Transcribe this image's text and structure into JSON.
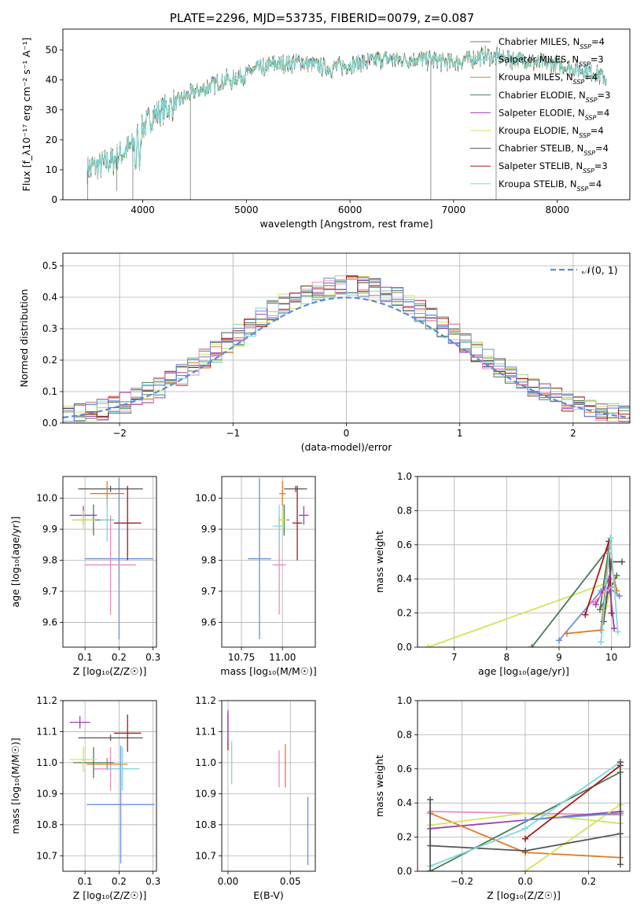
{
  "colors": {
    "Chabrier MILES": "#5b8a5b",
    "Salpeter MILES": "#a1ce9b",
    "Kroupa MILES": "#e07b2a",
    "Chabrier ELODIE": "#4a7a55",
    "Salpeter ELODIE": "#9d3fb5",
    "Kroupa ELODIE": "#d4e35a",
    "Chabrier STELIB": "#555555",
    "Salpeter STELIB": "#a81818",
    "Kroupa STELIB": "#7fd8dc",
    "extra_pink": "#e88cbf",
    "extra_blue": "#6a8fdc",
    "gaussian": "#5b8ad6"
  },
  "chart_data": [
    {
      "id": "spectrum",
      "type": "line",
      "title": "PLATE=2296, MJD=53735, FIBERID=0079, z=0.087",
      "xlabel": "wavelength [Angstrom, rest frame]",
      "ylabel": "Flux [f_λ10⁻¹⁷ erg cm⁻² s⁻¹ A⁻¹]",
      "xlim": [
        3230,
        8700
      ],
      "ylim": [
        0,
        57
      ],
      "xticks": [
        "4000",
        "5000",
        "6000",
        "7000",
        "8000"
      ],
      "yticks": [
        "0",
        "10",
        "20",
        "30",
        "40",
        "50"
      ],
      "legend_position": "top-right",
      "legend": [
        {
          "name": "Chabrier MILES",
          "sup": "N_SSP=4"
        },
        {
          "name": "Salpeter MILES",
          "sup": "N_SSP=3"
        },
        {
          "name": "Kroupa MILES",
          "sup": "N_SSP=4"
        },
        {
          "name": "Chabrier ELODIE",
          "sup": "N_SSP=3"
        },
        {
          "name": "Salpeter ELODIE",
          "sup": "N_SSP=4"
        },
        {
          "name": "Kroupa ELODIE",
          "sup": "N_SSP=4"
        },
        {
          "name": "Chabrier STELIB",
          "sup": "N_SSP=4"
        },
        {
          "name": "Salpeter STELIB",
          "sup": "N_SSP=3"
        },
        {
          "name": "Kroupa STELIB",
          "sup": "N_SSP=4"
        }
      ],
      "continuum_knots": [
        [
          3460,
          10
        ],
        [
          3700,
          13
        ],
        [
          3900,
          18
        ],
        [
          4000,
          24
        ],
        [
          4100,
          28
        ],
        [
          4300,
          32
        ],
        [
          4500,
          36
        ],
        [
          4800,
          40
        ],
        [
          5000,
          42
        ],
        [
          5200,
          45
        ],
        [
          5500,
          46
        ],
        [
          5800,
          44
        ],
        [
          6000,
          45
        ],
        [
          6300,
          47
        ],
        [
          6600,
          47
        ],
        [
          7000,
          46
        ],
        [
          7300,
          48
        ],
        [
          7600,
          47
        ],
        [
          8000,
          45
        ],
        [
          8300,
          43
        ],
        [
          8500,
          40
        ]
      ],
      "drop_lines": [
        [
          3470,
          0
        ],
        [
          3750,
          3
        ],
        [
          3905,
          0
        ],
        [
          4460,
          0
        ],
        [
          6780,
          0
        ],
        [
          7410,
          0
        ]
      ]
    },
    {
      "id": "residual-hist",
      "type": "histogram",
      "xlabel": "(data-model)/error",
      "ylabel": "Normed distribution",
      "xlim": [
        -2.5,
        2.5
      ],
      "ylim": [
        0,
        0.54
      ],
      "xticks": [
        "−2",
        "−1",
        "0",
        "1",
        "2"
      ],
      "yticks": [
        "0.0",
        "0.1",
        "0.2",
        "0.3",
        "0.4",
        "0.5"
      ],
      "legend_position": "top-right",
      "legend_label": "𝒩(0, 1)",
      "bin_edges_from": -2.5,
      "bin_width": 0.1,
      "gaussian": {
        "mu": 0,
        "sigma": 1
      }
    },
    {
      "id": "age-Z",
      "type": "errorbar",
      "xlabel": "Z [log₁₀(Z/Z☉)]",
      "ylabel": "age [log₁₀(age/yr)]",
      "xlim": [
        0.035,
        0.31
      ],
      "ylim": [
        9.52,
        10.07
      ],
      "xticks": [
        "0.1",
        "0.2",
        "0.3"
      ],
      "yticks": [
        "9.6",
        "9.7",
        "9.8",
        "9.9",
        "10.0"
      ],
      "points": [
        {
          "c": "extra_blue",
          "x": 0.2,
          "y": 9.805,
          "xe": 0.1,
          "ye": 0.26
        },
        {
          "c": "extra_pink",
          "x": 0.175,
          "y": 9.785,
          "xe": 0.075,
          "ye": 0.16
        },
        {
          "c": "Chabrier STELIB",
          "x": 0.175,
          "y": 10.03,
          "xe": 0.095,
          "ye": 0.01
        },
        {
          "c": "Kroupa MILES",
          "x": 0.165,
          "y": 10.015,
          "xe": 0.05,
          "ye": 0.04
        },
        {
          "c": "Salpeter ELODIE",
          "x": 0.095,
          "y": 9.945,
          "xe": 0.04,
          "ye": 0.03
        },
        {
          "c": "Chabrier ELODIE",
          "x": 0.125,
          "y": 9.93,
          "xe": 0.06,
          "ye": 0.05
        },
        {
          "c": "Salpeter STELIB",
          "x": 0.225,
          "y": 9.92,
          "xe": 0.04,
          "ye": 0.12
        },
        {
          "c": "Kroupa ELODIE",
          "x": 0.095,
          "y": 9.93,
          "xe": 0.035,
          "ye": 0.03
        },
        {
          "c": "Kroupa STELIB",
          "x": 0.165,
          "y": 9.93,
          "xe": 0.02,
          "ye": 0.07
        }
      ]
    },
    {
      "id": "age-mass",
      "type": "errorbar",
      "xlabel": "mass [log₁₀(M/M☉)]",
      "ylabel": "",
      "xlim": [
        10.63,
        11.2
      ],
      "ylim": [
        9.52,
        10.07
      ],
      "xticks": [
        "10.75",
        "11.00"
      ],
      "yticks": [
        "9.6",
        "9.7",
        "9.8",
        "9.9",
        "10.0"
      ],
      "points": [
        {
          "c": "extra_blue",
          "x": 10.86,
          "y": 9.805,
          "xe": 0.07,
          "ye": 0.26
        },
        {
          "c": "extra_pink",
          "x": 10.98,
          "y": 9.785,
          "xe": 0.04,
          "ye": 0.16
        },
        {
          "c": "Chabrier STELIB",
          "x": 11.08,
          "y": 10.03,
          "xe": 0.07,
          "ye": 0.01
        },
        {
          "c": "Kroupa MILES",
          "x": 11.0,
          "y": 10.015,
          "xe": 0.02,
          "ye": 0.04
        },
        {
          "c": "Salpeter ELODIE",
          "x": 11.13,
          "y": 9.945,
          "xe": 0.03,
          "ye": 0.03
        },
        {
          "c": "Chabrier ELODIE",
          "x": 11.01,
          "y": 9.93,
          "xe": 0.03,
          "ye": 0.05
        },
        {
          "c": "Salpeter STELIB",
          "x": 11.09,
          "y": 9.92,
          "xe": 0.03,
          "ye": 0.12
        },
        {
          "c": "Kroupa ELODIE",
          "x": 11.0,
          "y": 9.93,
          "xe": 0.03,
          "ye": 0.03
        },
        {
          "c": "Kroupa STELIB",
          "x": 10.98,
          "y": 9.91,
          "xe": 0.04,
          "ye": 0.07
        }
      ]
    },
    {
      "id": "massweight-age",
      "type": "line",
      "xlabel": "age [log₁₀(age/yr)]",
      "ylabel": "mass weight",
      "xlim": [
        6.3,
        10.35
      ],
      "ylim": [
        0,
        1.0
      ],
      "xticks": [
        "7",
        "8",
        "9",
        "10"
      ],
      "yticks": [
        "0.0",
        "0.2",
        "0.4",
        "0.6",
        "0.8",
        "1.0"
      ],
      "series": [
        {
          "c": "Kroupa ELODIE",
          "pts": [
            [
              6.5,
              0.0
            ],
            [
              9.95,
              0.38
            ],
            [
              9.9,
              0.24
            ],
            [
              10.0,
              0.35
            ]
          ]
        },
        {
          "c": "Chabrier ELODIE",
          "pts": [
            [
              8.48,
              0.0
            ],
            [
              9.95,
              0.58
            ],
            [
              9.78,
              0.22
            ],
            [
              10.1,
              0.42
            ]
          ]
        },
        {
          "c": "extra_blue",
          "pts": [
            [
              9.0,
              0.04
            ],
            [
              9.8,
              0.33
            ],
            [
              9.95,
              0.35
            ],
            [
              10.15,
              0.3
            ]
          ]
        },
        {
          "c": "Kroupa MILES",
          "pts": [
            [
              9.15,
              0.08
            ],
            [
              9.8,
              0.1
            ],
            [
              9.95,
              0.55
            ],
            [
              10.1,
              0.33
            ]
          ]
        },
        {
          "c": "Salpeter STELIB",
          "pts": [
            [
              9.5,
              0.19
            ],
            [
              9.95,
              0.62
            ],
            [
              10.0,
              0.2
            ]
          ]
        },
        {
          "c": "Chabrier STELIB",
          "pts": [
            [
              9.85,
              0.15
            ],
            [
              10.0,
              0.5
            ],
            [
              10.2,
              0.5
            ]
          ]
        },
        {
          "c": "Salpeter ELODIE",
          "pts": [
            [
              9.7,
              0.25
            ],
            [
              9.95,
              0.4
            ],
            [
              10.05,
              0.11
            ]
          ]
        },
        {
          "c": "extra_pink",
          "pts": [
            [
              9.65,
              0.26
            ],
            [
              9.9,
              0.33
            ],
            [
              10.0,
              0.35
            ]
          ]
        },
        {
          "c": "Kroupa STELIB",
          "pts": [
            [
              9.8,
              0.03
            ],
            [
              9.98,
              0.64
            ],
            [
              10.12,
              0.09
            ]
          ]
        }
      ]
    },
    {
      "id": "mass-Z",
      "type": "errorbar",
      "xlabel": "Z [log₁₀(Z/Z☉)]",
      "ylabel": "mass [log₁₀(M/M☉)]",
      "xlim": [
        0.035,
        0.31
      ],
      "ylim": [
        10.65,
        11.2
      ],
      "xticks": [
        "0.1",
        "0.2",
        "0.3"
      ],
      "yticks": [
        "10.7",
        "10.8",
        "10.9",
        "11.0",
        "11.1",
        "11.2"
      ],
      "points": [
        {
          "c": "extra_blue",
          "x": 0.205,
          "y": 10.865,
          "xe": 0.1,
          "ye": 0.19
        },
        {
          "c": "extra_pink",
          "x": 0.175,
          "y": 10.98,
          "xe": 0.05,
          "ye": 0.07
        },
        {
          "c": "Chabrier STELIB",
          "x": 0.175,
          "y": 11.08,
          "xe": 0.095,
          "ye": 0.01
        },
        {
          "c": "Kroupa MILES",
          "x": 0.165,
          "y": 10.995,
          "xe": 0.06,
          "ye": 0.02
        },
        {
          "c": "Salpeter ELODIE",
          "x": 0.085,
          "y": 11.13,
          "xe": 0.03,
          "ye": 0.02
        },
        {
          "c": "Chabrier ELODIE",
          "x": 0.125,
          "y": 11.0,
          "xe": 0.06,
          "ye": 0.05
        },
        {
          "c": "Salpeter STELIB",
          "x": 0.225,
          "y": 11.095,
          "xe": 0.04,
          "ye": 0.06
        },
        {
          "c": "Kroupa ELODIE",
          "x": 0.095,
          "y": 11.01,
          "xe": 0.04,
          "ye": 0.04
        },
        {
          "c": "Kroupa STELIB",
          "x": 0.21,
          "y": 10.98,
          "xe": 0.05,
          "ye": 0.07
        }
      ]
    },
    {
      "id": "mass-ebv",
      "type": "errorbar",
      "xlabel": "E(B-V)",
      "ylabel": "",
      "xlim": [
        -0.005,
        0.07
      ],
      "ylim": [
        10.65,
        11.2
      ],
      "xticks": [
        "0.00",
        "0.05"
      ],
      "yticks": [
        "10.7",
        "10.8",
        "10.9",
        "11.0",
        "11.1",
        "11.2"
      ],
      "points": [
        {
          "c": "Salpeter STELIB",
          "x": 0.0,
          "y": 11.1,
          "xe": 0,
          "ye": 0.06
        },
        {
          "c": "Salpeter ELODIE",
          "x": 0.0,
          "y": 11.12,
          "xe": 0,
          "ye": 0.05
        },
        {
          "c": "Kroupa STELIB",
          "x": 0.003,
          "y": 11.0,
          "xe": 0,
          "ye": 0.07
        },
        {
          "c": "extra_pink",
          "x": 0.041,
          "y": 10.98,
          "xe": 0,
          "ye": 0.06
        },
        {
          "c": "Kroupa MILES",
          "x": 0.046,
          "y": 10.99,
          "xe": 0,
          "ye": 0.07
        },
        {
          "c": "extra_blue",
          "x": 0.064,
          "y": 10.78,
          "xe": 0,
          "ye": 0.11
        }
      ]
    },
    {
      "id": "massweight-Z",
      "type": "line",
      "xlabel": "Z [log₁₀(Z/Z☉)]",
      "ylabel": "mass weight",
      "xlim": [
        -0.34,
        0.33
      ],
      "ylim": [
        0,
        1.0
      ],
      "xticks": [
        "−0.2",
        "0.0",
        "0.2"
      ],
      "yticks": [
        "0.0",
        "0.2",
        "0.4",
        "0.6",
        "0.8",
        "1.0"
      ],
      "series": [
        {
          "c": "extra_pink",
          "pts": [
            [
              -0.3,
              0.35
            ],
            [
              0.3,
              0.33
            ]
          ]
        },
        {
          "c": "Salpeter ELODIE",
          "pts": [
            [
              -0.3,
              0.25
            ],
            [
              0.3,
              0.35
            ]
          ]
        },
        {
          "c": "Kroupa MILES",
          "pts": [
            [
              -0.3,
              0.34
            ],
            [
              0.0,
              0.11
            ],
            [
              0.3,
              0.08
            ]
          ]
        },
        {
          "c": "Kroupa ELODIE",
          "pts": [
            [
              -0.3,
              0.27
            ],
            [
              0.0,
              0.34
            ],
            [
              0.3,
              0.28
            ]
          ]
        },
        {
          "c": "Kroupa ELODIE",
          "pts": [
            [
              0.0,
              0.0
            ],
            [
              0.3,
              0.39
            ]
          ]
        },
        {
          "c": "Chabrier STELIB",
          "pts": [
            [
              -0.3,
              0.15
            ],
            [
              0.0,
              0.12
            ],
            [
              0.3,
              0.22
            ]
          ]
        },
        {
          "c": "Chabrier ELODIE",
          "pts": [
            [
              -0.3,
              0.0
            ],
            [
              0.3,
              0.58
            ]
          ]
        },
        {
          "c": "Kroupa STELIB",
          "pts": [
            [
              -0.3,
              0.03
            ],
            [
              0.0,
              0.25
            ],
            [
              0.3,
              0.64
            ]
          ]
        },
        {
          "c": "extra_blue",
          "pts": [
            [
              0.0,
              0.3
            ],
            [
              0.3,
              0.34
            ]
          ]
        },
        {
          "c": "Salpeter STELIB",
          "pts": [
            [
              0.0,
              0.19
            ],
            [
              0.3,
              0.62
            ]
          ]
        },
        {
          "c": "Chabrier STELIB",
          "pts": [
            [
              -0.3,
              0.42
            ],
            [
              -0.3,
              0.0
            ]
          ]
        },
        {
          "c": "Chabrier STELIB",
          "pts": [
            [
              0.3,
              0.64
            ],
            [
              0.3,
              0.04
            ]
          ]
        }
      ]
    }
  ]
}
